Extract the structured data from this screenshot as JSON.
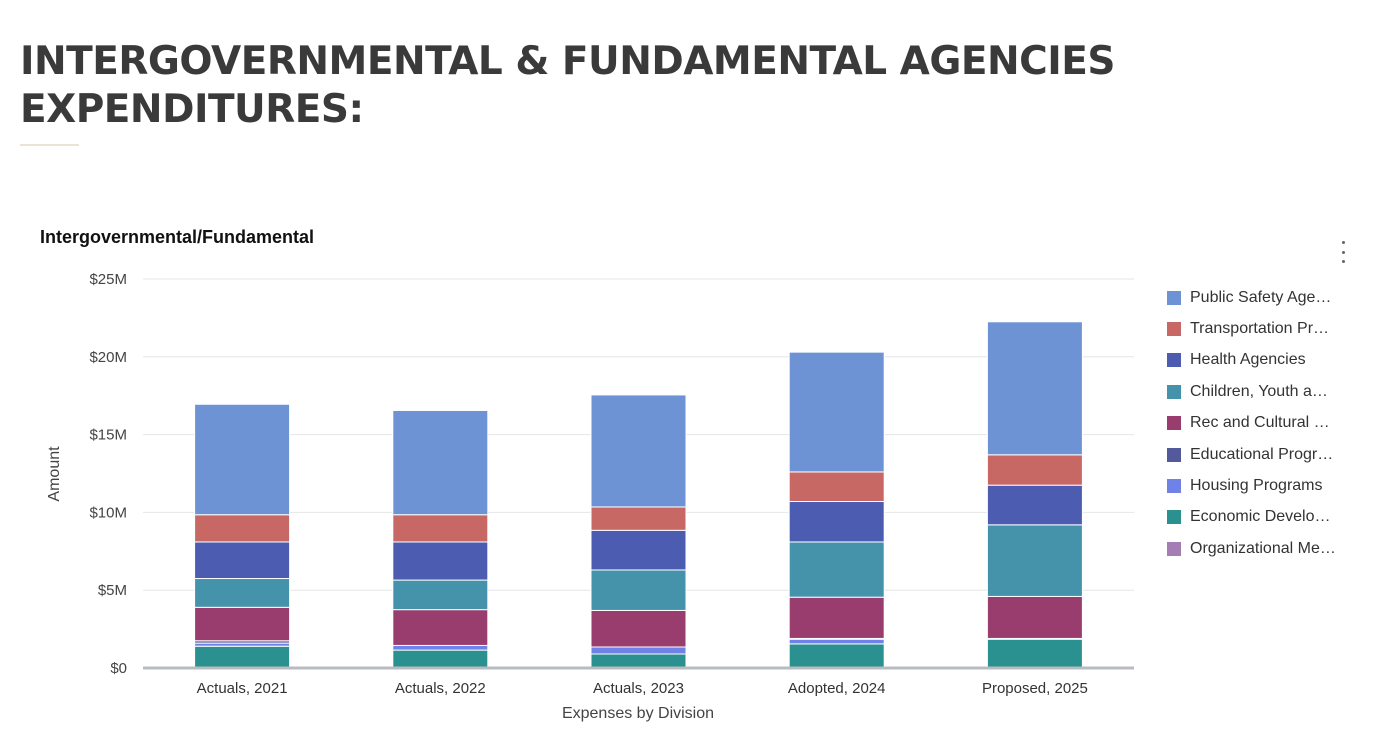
{
  "page": {
    "heading_line1": "INTERGOVERNMENTAL & FUNDAMENTAL AGENCIES",
    "heading_line2": "EXPENDITURES:"
  },
  "menu": {
    "icon": "kebab-menu-icon"
  },
  "chart_data": {
    "type": "bar",
    "stacked": true,
    "title": "Intergovernmental/Fundamental",
    "xlabel": "Expenses by Division",
    "ylabel": "Amount",
    "ylim": [
      0,
      25
    ],
    "y_ticks": [
      0,
      5,
      10,
      15,
      20,
      25
    ],
    "y_tick_labels": [
      "$0",
      "$5M",
      "$10M",
      "$15M",
      "$20M",
      "$25M"
    ],
    "y_unit": "$M",
    "grid": true,
    "legend_position": "right",
    "categories": [
      "Actuals, 2021",
      "Actuals, 2022",
      "Actuals, 2023",
      "Adopted, 2024",
      "Proposed, 2025"
    ],
    "series": [
      {
        "name": "Economic Develo…",
        "color": "#2a9190",
        "values": [
          1.4,
          1.15,
          0.9,
          1.55,
          1.85
        ]
      },
      {
        "name": "Housing Programs",
        "color": "#6f82e8",
        "values": [
          0.2,
          0.3,
          0.45,
          0.3,
          0.05
        ]
      },
      {
        "name": "Educational Progr…",
        "color": "#535a9b",
        "values": [
          0.15,
          0.0,
          0.0,
          0.05,
          0.0
        ]
      },
      {
        "name": "Rec and Cultural …",
        "color": "#993d6e",
        "values": [
          2.15,
          2.3,
          2.35,
          2.65,
          2.7
        ]
      },
      {
        "name": "Children, Youth a…",
        "color": "#4592ab",
        "values": [
          1.85,
          1.9,
          2.6,
          3.55,
          4.6
        ]
      },
      {
        "name": "Health Agencies",
        "color": "#4b5cb1",
        "values": [
          2.35,
          2.45,
          2.55,
          2.6,
          2.55
        ]
      },
      {
        "name": "Transportation Pr…",
        "color": "#c86864",
        "values": [
          1.75,
          1.75,
          1.5,
          1.9,
          1.95
        ]
      },
      {
        "name": "Public Safety Age…",
        "color": "#6d93d5",
        "values": [
          7.1,
          6.7,
          7.2,
          7.7,
          8.55
        ]
      },
      {
        "name": "Organizational Me…",
        "color": "#a37db3",
        "values": [
          0.0,
          0.0,
          0.0,
          0.0,
          0.0
        ]
      }
    ],
    "legend_order": [
      "Public Safety Age…",
      "Transportation Pr…",
      "Health Agencies",
      "Children, Youth a…",
      "Rec and Cultural …",
      "Educational Progr…",
      "Housing Programs",
      "Economic Develo…",
      "Organizational Me…"
    ]
  }
}
